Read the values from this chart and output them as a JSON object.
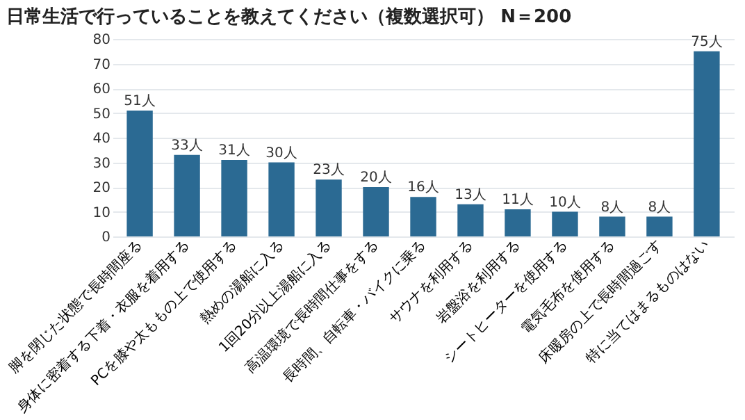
{
  "chart_data": {
    "type": "bar",
    "title": "日常生活で行っていることを教えてください（複数選択可） N＝200",
    "categories": [
      "脚を閉じた状態で長時間座る",
      "身体に密着する下着・衣服を着用する",
      "PCを膝や太ももの上で使用する",
      "熱めの湯船に入る",
      "1回20分以上湯船に入る",
      "高温環境で長時間仕事をする",
      "長時間、自転車・バイクに乗る",
      "サウナを利用する",
      "岩盤浴を利用する",
      "シートヒーターを使用する",
      "電気毛布を使用する",
      "床暖房の上で長時間過ごす",
      "特に当てはまるものはない"
    ],
    "values": [
      51,
      33,
      31,
      30,
      23,
      20,
      16,
      13,
      11,
      10,
      8,
      8,
      75
    ],
    "value_labels": [
      "51人",
      "33人",
      "31人",
      "30人",
      "23人",
      "20人",
      "16人",
      "13人",
      "11人",
      "10人",
      "8人",
      "8人",
      "75人"
    ],
    "color": "#2b6a93",
    "ylim": [
      0,
      80
    ],
    "yticks": [
      0,
      10,
      20,
      30,
      40,
      50,
      60,
      70,
      80
    ],
    "grid": "y"
  }
}
